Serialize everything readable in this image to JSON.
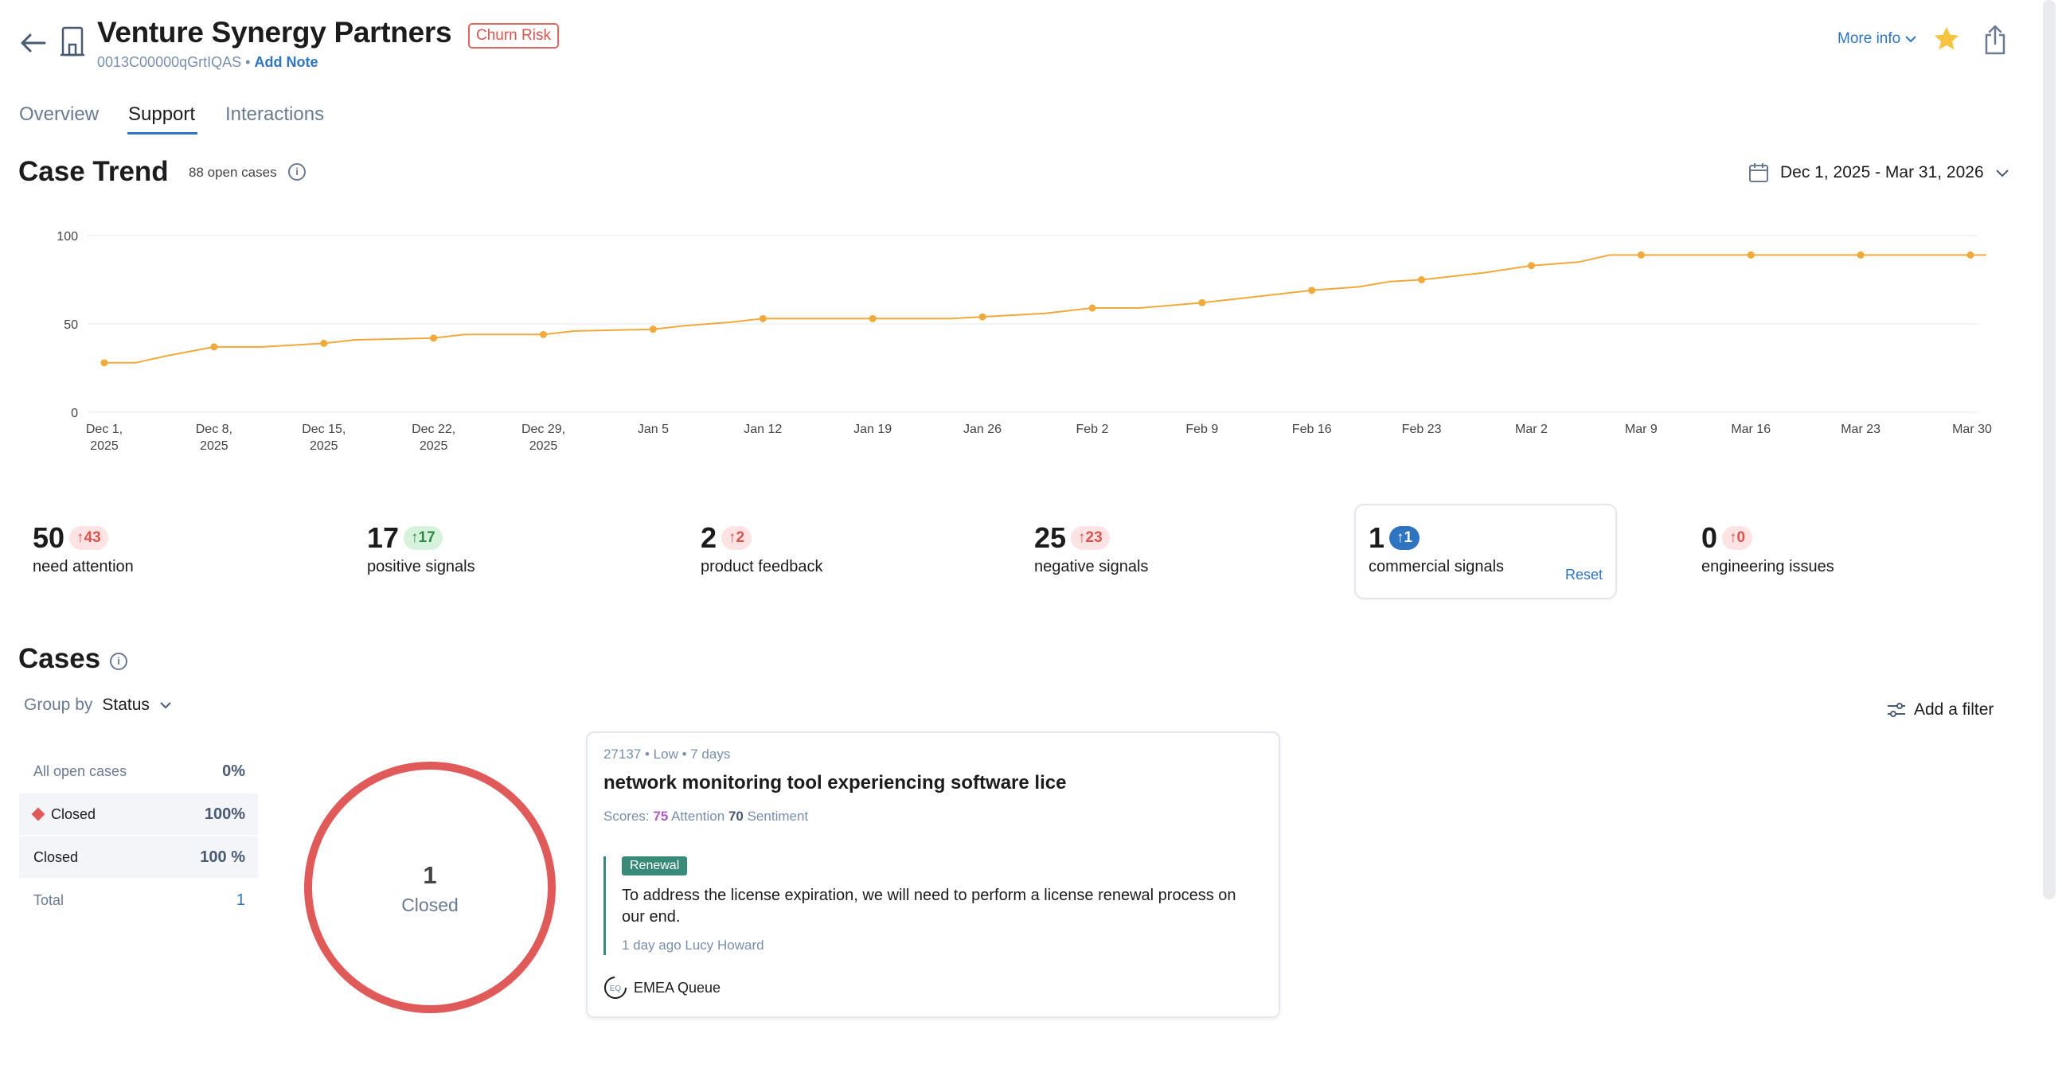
{
  "header": {
    "account_name": "Venture Synergy Partners",
    "churn_badge": "Churn Risk",
    "account_id": "0013C00000qGrtIQAS",
    "separator": "•",
    "add_note": "Add Note",
    "more_info": "More info",
    "icons": [
      "back-arrow-icon",
      "building-icon",
      "chevron-down-icon",
      "star-icon",
      "share-icon"
    ]
  },
  "tabs": [
    {
      "label": "Overview"
    },
    {
      "label": "Support",
      "active": true
    },
    {
      "label": "Interactions"
    }
  ],
  "case_trend": {
    "title": "Case Trend",
    "open_cases": "88 open cases",
    "date_range": "Dec 1, 2025 - Mar 31, 2026"
  },
  "chart_data": {
    "type": "line",
    "color": "#f0a93b",
    "ylim": [
      0,
      100
    ],
    "y_ticks": [
      "0",
      "50",
      "100"
    ],
    "x_ticks": [
      [
        "Dec 1,",
        "2025"
      ],
      [
        "Dec 8,",
        "2025"
      ],
      [
        "Dec 15,",
        "2025"
      ],
      [
        "Dec 22,",
        "2025"
      ],
      [
        "Dec 29,",
        "2025"
      ],
      [
        "Jan 5"
      ],
      [
        "Jan 12"
      ],
      [
        "Jan 19"
      ],
      [
        "Jan 26"
      ],
      [
        "Feb 2"
      ],
      [
        "Feb 9"
      ],
      [
        "Feb 16"
      ],
      [
        "Feb 23"
      ],
      [
        "Mar 2"
      ],
      [
        "Mar 9"
      ],
      [
        "Mar 16"
      ],
      [
        "Mar 23"
      ],
      [
        "Mar 30"
      ]
    ],
    "line": [
      [
        "2025-12-01",
        28
      ],
      [
        "2025-12-03",
        28
      ],
      [
        "2025-12-05",
        32
      ],
      [
        "2025-12-08",
        37
      ],
      [
        "2025-12-11",
        37
      ],
      [
        "2025-12-15",
        39
      ],
      [
        "2025-12-17",
        41
      ],
      [
        "2025-12-22",
        42
      ],
      [
        "2025-12-24",
        44
      ],
      [
        "2025-12-29",
        44
      ],
      [
        "2025-12-31",
        46
      ],
      [
        "2026-01-05",
        47
      ],
      [
        "2026-01-07",
        49
      ],
      [
        "2026-01-10",
        51
      ],
      [
        "2026-01-12",
        53
      ],
      [
        "2026-01-19",
        53
      ],
      [
        "2026-01-24",
        53
      ],
      [
        "2026-01-26",
        54
      ],
      [
        "2026-01-30",
        56
      ],
      [
        "2026-02-02",
        59
      ],
      [
        "2026-02-05",
        59
      ],
      [
        "2026-02-09",
        62
      ],
      [
        "2026-02-12",
        65
      ],
      [
        "2026-02-16",
        69
      ],
      [
        "2026-02-19",
        71
      ],
      [
        "2026-02-21",
        74
      ],
      [
        "2026-02-23",
        75
      ],
      [
        "2026-02-25",
        77
      ],
      [
        "2026-02-27",
        79
      ],
      [
        "2026-03-02",
        83
      ],
      [
        "2026-03-05",
        85
      ],
      [
        "2026-03-07",
        89
      ],
      [
        "2026-03-09",
        89
      ],
      [
        "2026-03-16",
        89
      ],
      [
        "2026-03-23",
        89
      ],
      [
        "2026-03-30",
        89
      ],
      [
        "2026-03-31",
        89
      ]
    ],
    "markers": [
      [
        "2025-12-01",
        28
      ],
      [
        "2025-12-08",
        37
      ],
      [
        "2025-12-15",
        39
      ],
      [
        "2025-12-22",
        42
      ],
      [
        "2025-12-29",
        44
      ],
      [
        "2026-01-05",
        47
      ],
      [
        "2026-01-12",
        53
      ],
      [
        "2026-01-19",
        53
      ],
      [
        "2026-01-26",
        54
      ],
      [
        "2026-02-02",
        59
      ],
      [
        "2026-02-09",
        62
      ],
      [
        "2026-02-16",
        69
      ],
      [
        "2026-02-23",
        75
      ],
      [
        "2026-03-02",
        83
      ],
      [
        "2026-03-09",
        89
      ],
      [
        "2026-03-16",
        89
      ],
      [
        "2026-03-23",
        89
      ],
      [
        "2026-03-30",
        89
      ]
    ],
    "grid": true
  },
  "stats": [
    {
      "value": "50",
      "delta": "43",
      "label": "need attention",
      "tone": "red"
    },
    {
      "value": "17",
      "delta": "17",
      "label": "positive signals",
      "tone": "green"
    },
    {
      "value": "2",
      "delta": "2",
      "label": "product feedback",
      "tone": "red"
    },
    {
      "value": "25",
      "delta": "23",
      "label": "negative signals",
      "tone": "red"
    },
    {
      "value": "1",
      "delta": "1",
      "label": "commercial signals",
      "tone": "blue",
      "selected": true
    },
    {
      "value": "0",
      "delta": "0",
      "label": "engineering issues",
      "tone": "red"
    }
  ],
  "stats_reset": "Reset",
  "cases": {
    "title": "Cases",
    "group_by_label": "Group by",
    "group_by_value": "Status",
    "add_filter": "Add a filter",
    "status_rows": [
      {
        "label": "All open cases",
        "pct": "0%"
      },
      {
        "label": "Closed",
        "pct": "100%",
        "marker_color": "#e05a5a"
      },
      {
        "label": "Closed",
        "pct": "100 %"
      },
      {
        "label": "Total",
        "pct": "1"
      }
    ],
    "donut": {
      "value": "1",
      "label": "Closed",
      "color": "#e05a5a"
    }
  },
  "case_card": {
    "meta": "27137 • Low • 7 days",
    "title": "network monitoring tool experiencing software lice",
    "scores_label": "Scores:",
    "attention_score": "75",
    "attention_label": "Attention",
    "sentiment_score": "70",
    "sentiment_label": "Sentiment",
    "tag": "Renewal",
    "quote": "To address the license expiration, we will need to perform a license renewal process on our end.",
    "quote_meta": "1 day ago Lucy Howard",
    "queue": "EMEA Queue",
    "queue_avatar": "EQ"
  }
}
